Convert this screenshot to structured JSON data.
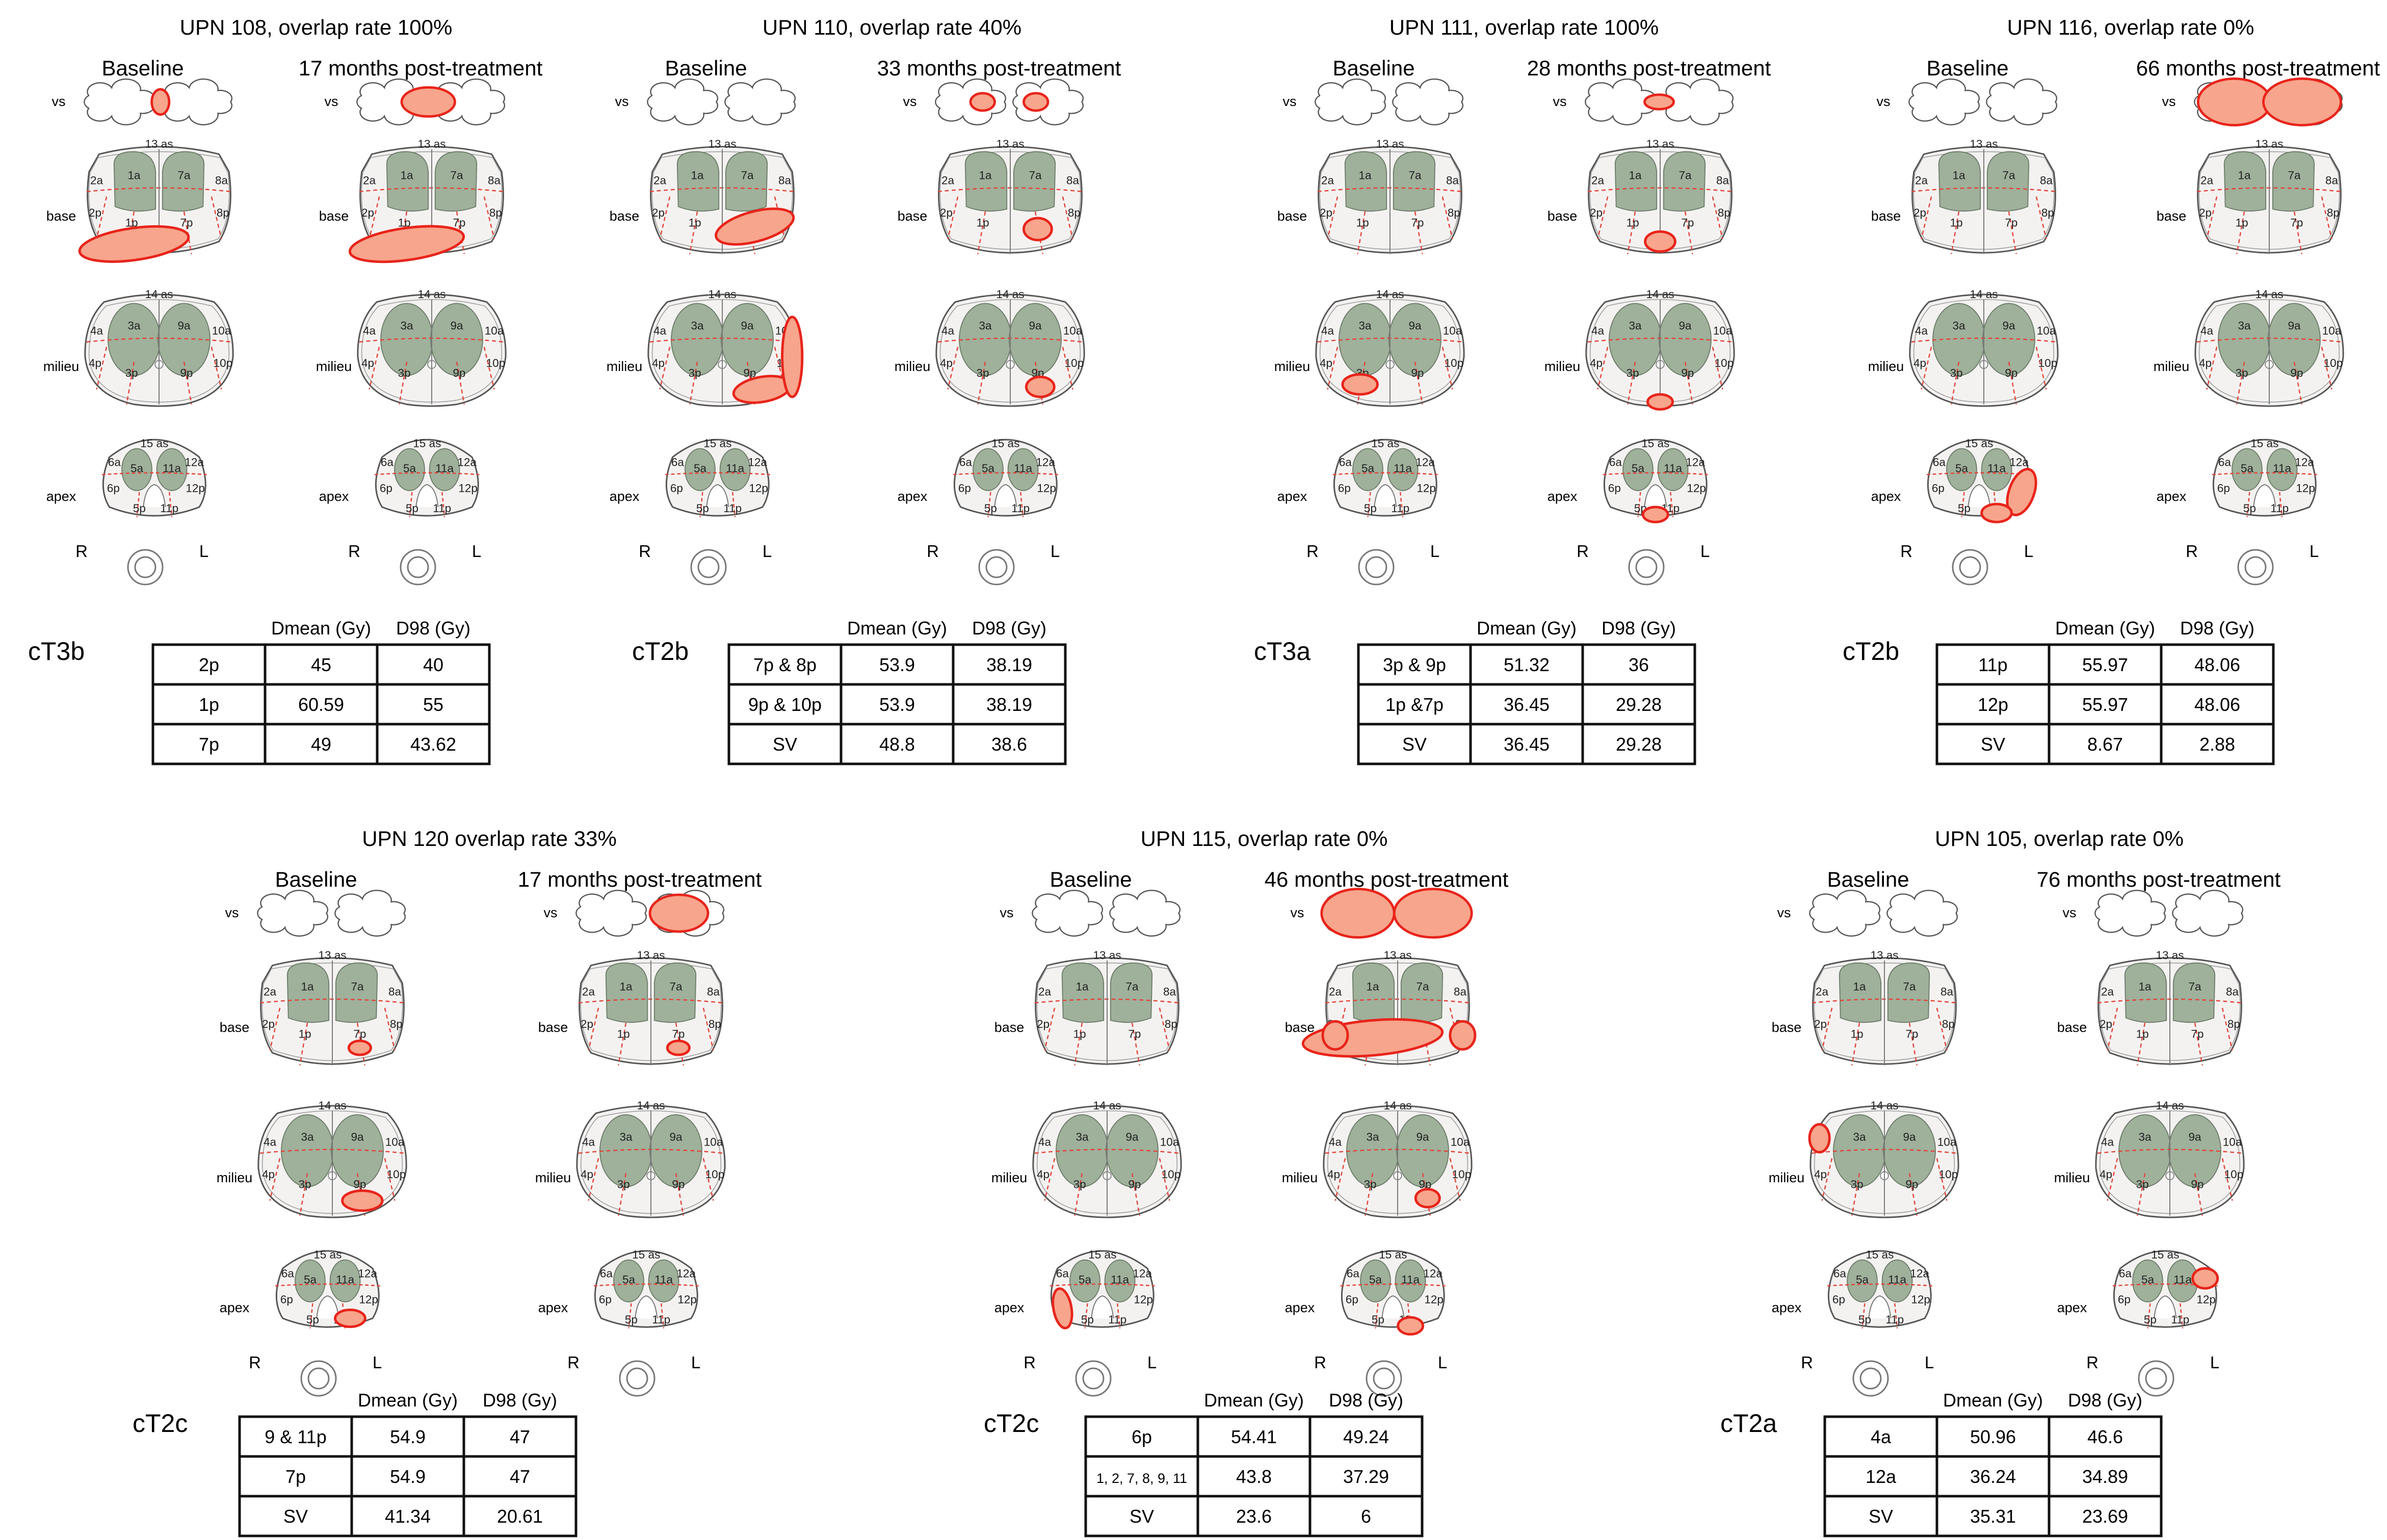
{
  "common": {
    "col_baseline": "Baseline",
    "levels": {
      "vs": "vs",
      "base": "base",
      "milieu": "milieu",
      "apex": "apex"
    },
    "orient": {
      "right": "R",
      "left": "L"
    },
    "table_headers": [
      "Dmean (Gy)",
      "D98 (Gy)"
    ],
    "segments": {
      "base": [
        "1a",
        "7a",
        "2a",
        "8a",
        "2p",
        "1p",
        "7p",
        "8p",
        "13 as"
      ],
      "milieu": [
        "3a",
        "9a",
        "4a",
        "10a",
        "4p",
        "3p",
        "9p",
        "10p",
        "14 as"
      ],
      "apex": [
        "5a",
        "11a",
        "6a",
        "12a",
        "6p",
        "5p",
        "11p",
        "12p",
        "15 as"
      ]
    }
  },
  "colors": {
    "lesion_fill": "#f7a58c",
    "lesion_stroke": "#e8241b",
    "gland": "#9fb09b",
    "grid": "#e2453a",
    "outline": "#555555"
  },
  "panels": [
    {
      "title": "UPN 108, overlap rate 100%",
      "post_label": "17 months post-treatment",
      "stage": "cT3b",
      "rows": [
        [
          "2p",
          "45",
          "40"
        ],
        [
          "1p",
          "60.59",
          "55"
        ],
        [
          "7p",
          "49",
          "43.62"
        ]
      ]
    },
    {
      "title": "UPN 110, overlap rate 40%",
      "post_label": "33 months post-treatment",
      "stage": "cT2b",
      "rows": [
        [
          "7p & 8p",
          "53.9",
          "38.19"
        ],
        [
          "9p & 10p",
          "53.9",
          "38.19"
        ],
        [
          "SV",
          "48.8",
          "38.6"
        ]
      ]
    },
    {
      "title": "UPN 111, overlap rate 100%",
      "post_label": "28 months post-treatment",
      "stage": "cT3a",
      "rows": [
        [
          "3p & 9p",
          "51.32",
          "36"
        ],
        [
          "1p &7p",
          "36.45",
          "29.28"
        ],
        [
          "SV",
          "36.45",
          "29.28"
        ]
      ]
    },
    {
      "title": "UPN 116, overlap rate 0%",
      "post_label": "66 months post-treatment",
      "stage": "cT2b",
      "rows": [
        [
          "11p",
          "55.97",
          "48.06"
        ],
        [
          "12p",
          "55.97",
          "48.06"
        ],
        [
          "SV",
          "8.67",
          "2.88"
        ]
      ]
    },
    {
      "title": "UPN 120 overlap rate 33%",
      "post_label": "17 months post-treatment",
      "stage": "cT2c",
      "rows": [
        [
          "9 & 11p",
          "54.9",
          "47"
        ],
        [
          "7p",
          "54.9",
          "47"
        ],
        [
          "SV",
          "41.34",
          "20.61"
        ]
      ]
    },
    {
      "title": "UPN 115, overlap rate 0%",
      "post_label": "46 months post-treatment",
      "stage": "cT2c",
      "rows": [
        [
          "6p",
          "54.41",
          "49.24"
        ],
        [
          "1, 2, 7, 8, 9, 11",
          "43.8",
          "37.29"
        ],
        [
          "SV",
          "23.6",
          "6"
        ]
      ]
    },
    {
      "title": "UPN 105, overlap rate 0%",
      "post_label": "76 months post-treatment",
      "stage": "cT2a",
      "rows": [
        [
          "4a",
          "50.96",
          "46.6"
        ],
        [
          "12a",
          "36.24",
          "34.89"
        ],
        [
          "SV",
          "35.31",
          "23.69"
        ]
      ]
    }
  ]
}
